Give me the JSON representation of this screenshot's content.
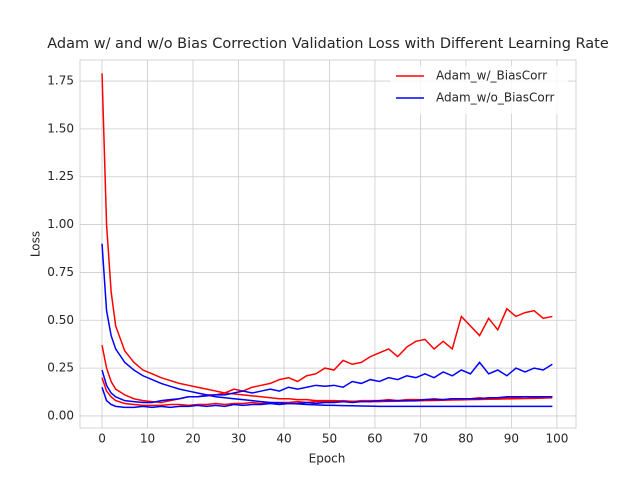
{
  "chart_data": {
    "type": "line",
    "title": "Adam w/ and w/o Bias Correction Validation Loss with Different Learning Rate",
    "x_label": "Epoch",
    "y_label": "Loss",
    "x": [
      0,
      1,
      2,
      3,
      5,
      7,
      9,
      11,
      13,
      15,
      17,
      19,
      21,
      23,
      25,
      27,
      29,
      31,
      33,
      35,
      37,
      39,
      41,
      43,
      45,
      47,
      49,
      51,
      53,
      55,
      57,
      59,
      61,
      63,
      65,
      67,
      69,
      71,
      73,
      75,
      77,
      79,
      81,
      83,
      85,
      87,
      89,
      91,
      93,
      95,
      97,
      99
    ],
    "series": [
      {
        "name": "Adam_w/_BiasCorr",
        "color": "#ff0000",
        "lines": [
          [
            1.79,
            1.0,
            0.65,
            0.47,
            0.34,
            0.28,
            0.24,
            0.22,
            0.2,
            0.185,
            0.17,
            0.16,
            0.15,
            0.14,
            0.13,
            0.12,
            0.115,
            0.11,
            0.105,
            0.1,
            0.095,
            0.09,
            0.09,
            0.085,
            0.085,
            0.08,
            0.08,
            0.08,
            0.078,
            0.077,
            0.076,
            0.075,
            0.075,
            0.076,
            0.077,
            0.078,
            0.079,
            0.08,
            0.081,
            0.082,
            0.083,
            0.084,
            0.085,
            0.086,
            0.087,
            0.088,
            0.089,
            0.09,
            0.091,
            0.092,
            0.093,
            0.095
          ],
          [
            0.37,
            0.25,
            0.18,
            0.14,
            0.11,
            0.09,
            0.08,
            0.075,
            0.07,
            0.08,
            0.09,
            0.1,
            0.1,
            0.11,
            0.11,
            0.12,
            0.14,
            0.13,
            0.15,
            0.16,
            0.17,
            0.19,
            0.2,
            0.18,
            0.21,
            0.22,
            0.25,
            0.24,
            0.29,
            0.27,
            0.28,
            0.31,
            0.33,
            0.35,
            0.31,
            0.36,
            0.39,
            0.4,
            0.35,
            0.39,
            0.35,
            0.52,
            0.47,
            0.42,
            0.51,
            0.45,
            0.56,
            0.52,
            0.54,
            0.55,
            0.51,
            0.52
          ],
          [
            0.2,
            0.13,
            0.1,
            0.08,
            0.065,
            0.06,
            0.055,
            0.055,
            0.055,
            0.06,
            0.06,
            0.055,
            0.06,
            0.06,
            0.065,
            0.06,
            0.065,
            0.065,
            0.07,
            0.065,
            0.07,
            0.07,
            0.07,
            0.075,
            0.07,
            0.075,
            0.075,
            0.075,
            0.08,
            0.075,
            0.08,
            0.08,
            0.08,
            0.085,
            0.08,
            0.085,
            0.085,
            0.085,
            0.09,
            0.085,
            0.09,
            0.09,
            0.09,
            0.095,
            0.09,
            0.095,
            0.095,
            0.095,
            0.1,
            0.095,
            0.1,
            0.1
          ]
        ]
      },
      {
        "name": "Adam_w/o_BiasCorr",
        "color": "#0000ff",
        "lines": [
          [
            0.9,
            0.55,
            0.42,
            0.35,
            0.28,
            0.24,
            0.21,
            0.19,
            0.17,
            0.155,
            0.14,
            0.13,
            0.12,
            0.11,
            0.1,
            0.095,
            0.09,
            0.085,
            0.08,
            0.075,
            0.07,
            0.068,
            0.065,
            0.063,
            0.06,
            0.058,
            0.056,
            0.055,
            0.054,
            0.053,
            0.052,
            0.051,
            0.05,
            0.05,
            0.05,
            0.05,
            0.05,
            0.05,
            0.05,
            0.05,
            0.05,
            0.05,
            0.05,
            0.05,
            0.05,
            0.05,
            0.05,
            0.05,
            0.05,
            0.05,
            0.05,
            0.05
          ],
          [
            0.24,
            0.16,
            0.12,
            0.1,
            0.08,
            0.075,
            0.07,
            0.07,
            0.08,
            0.085,
            0.09,
            0.1,
            0.1,
            0.105,
            0.11,
            0.11,
            0.12,
            0.13,
            0.12,
            0.13,
            0.14,
            0.13,
            0.15,
            0.14,
            0.15,
            0.16,
            0.155,
            0.16,
            0.15,
            0.18,
            0.17,
            0.19,
            0.18,
            0.2,
            0.19,
            0.21,
            0.2,
            0.22,
            0.2,
            0.23,
            0.21,
            0.24,
            0.22,
            0.28,
            0.22,
            0.24,
            0.21,
            0.25,
            0.23,
            0.25,
            0.24,
            0.27
          ],
          [
            0.15,
            0.08,
            0.06,
            0.05,
            0.045,
            0.045,
            0.05,
            0.045,
            0.05,
            0.045,
            0.05,
            0.05,
            0.055,
            0.05,
            0.055,
            0.05,
            0.06,
            0.055,
            0.06,
            0.06,
            0.065,
            0.06,
            0.065,
            0.065,
            0.07,
            0.065,
            0.07,
            0.07,
            0.075,
            0.07,
            0.075,
            0.075,
            0.08,
            0.08,
            0.08,
            0.08,
            0.08,
            0.085,
            0.085,
            0.085,
            0.09,
            0.09,
            0.09,
            0.09,
            0.095,
            0.095,
            0.1,
            0.1,
            0.1,
            0.1,
            0.1,
            0.1
          ]
        ]
      }
    ],
    "xlim": [
      -4.84,
      104.2
    ],
    "ylim": [
      -0.063,
      1.86
    ],
    "xticks": [
      0,
      10,
      20,
      30,
      40,
      50,
      60,
      70,
      80,
      90,
      100
    ],
    "yticks": [
      {
        "value": 0,
        "label": "0.00"
      },
      {
        "value": 0.25,
        "label": "0.25"
      },
      {
        "value": 0.5,
        "label": "0.50"
      },
      {
        "value": 0.75,
        "label": "0.75"
      },
      {
        "value": 1,
        "label": "1.00"
      },
      {
        "value": 1.25,
        "label": "1.25"
      },
      {
        "value": 1.5,
        "label": "1.50"
      },
      {
        "value": 1.75,
        "label": "1.75"
      }
    ],
    "grid": true,
    "legend": "upper right"
  }
}
